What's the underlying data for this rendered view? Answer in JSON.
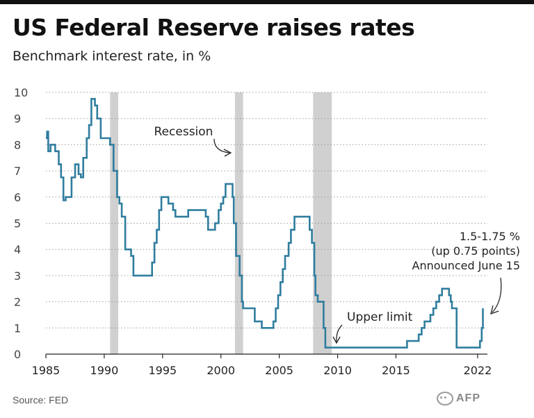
{
  "header": {
    "title": "US Federal Reserve raises rates",
    "subtitle": "Benchmark interest rate, in %"
  },
  "footer": {
    "source": "Source: FED",
    "watermark_text": "AFP"
  },
  "colors": {
    "line": "#2f7d9e",
    "recession": "#d0d0d0",
    "grid": "#9a9a9a",
    "axis": "#222222"
  },
  "chart_data": {
    "type": "line",
    "x_unit": "year",
    "xlim": [
      1985,
      2022.6
    ],
    "ylim": [
      0,
      10
    ],
    "x_ticks": [
      1985,
      1990,
      1995,
      2000,
      2005,
      2010,
      2015,
      2022
    ],
    "y_ticks": [
      0,
      1,
      2,
      3,
      4,
      5,
      6,
      7,
      8,
      9,
      10
    ],
    "grid": "horizontal dotted",
    "recessions": [
      {
        "start": 1990.5,
        "end": 1991.2
      },
      {
        "start": 2001.2,
        "end": 2001.9
      },
      {
        "start": 2007.9,
        "end": 2009.5
      }
    ],
    "annotations": {
      "recession_label": "Recession",
      "upper_limit_label": "Upper limit",
      "latest_line1": "1.5-1.75 %",
      "latest_line2": "(up 0.75 points)",
      "latest_line3": "Announced June 15"
    },
    "series": [
      {
        "step": "post",
        "points": [
          [
            1985.0,
            8.25
          ],
          [
            1985.1,
            8.5
          ],
          [
            1985.2,
            7.75
          ],
          [
            1985.4,
            8.0
          ],
          [
            1985.8,
            7.75
          ],
          [
            1986.1,
            7.25
          ],
          [
            1986.3,
            6.75
          ],
          [
            1986.5,
            5.875
          ],
          [
            1986.7,
            6.0
          ],
          [
            1987.2,
            6.75
          ],
          [
            1987.5,
            7.25
          ],
          [
            1987.8,
            6.875
          ],
          [
            1988.0,
            6.75
          ],
          [
            1988.2,
            7.5
          ],
          [
            1988.5,
            8.25
          ],
          [
            1988.7,
            8.75
          ],
          [
            1988.9,
            9.75
          ],
          [
            1989.2,
            9.5
          ],
          [
            1989.4,
            9.0
          ],
          [
            1989.7,
            8.25
          ],
          [
            1990.5,
            8.0
          ],
          [
            1990.8,
            7.0
          ],
          [
            1991.1,
            6.0
          ],
          [
            1991.3,
            5.75
          ],
          [
            1991.5,
            5.25
          ],
          [
            1991.8,
            4.0
          ],
          [
            1992.3,
            3.75
          ],
          [
            1992.5,
            3.0
          ],
          [
            1994.1,
            3.5
          ],
          [
            1994.3,
            4.25
          ],
          [
            1994.5,
            4.75
          ],
          [
            1994.7,
            5.5
          ],
          [
            1994.9,
            6.0
          ],
          [
            1995.5,
            5.75
          ],
          [
            1995.9,
            5.5
          ],
          [
            1996.1,
            5.25
          ],
          [
            1997.2,
            5.5
          ],
          [
            1998.7,
            5.25
          ],
          [
            1998.9,
            4.75
          ],
          [
            1999.5,
            5.0
          ],
          [
            1999.8,
            5.5
          ],
          [
            2000.0,
            5.75
          ],
          [
            2000.2,
            6.0
          ],
          [
            2000.4,
            6.5
          ],
          [
            2001.0,
            6.0
          ],
          [
            2001.1,
            5.0
          ],
          [
            2001.3,
            3.75
          ],
          [
            2001.6,
            3.0
          ],
          [
            2001.8,
            2.0
          ],
          [
            2001.9,
            1.75
          ],
          [
            2002.9,
            1.25
          ],
          [
            2003.5,
            1.0
          ],
          [
            2004.5,
            1.25
          ],
          [
            2004.7,
            1.75
          ],
          [
            2004.9,
            2.25
          ],
          [
            2005.1,
            2.75
          ],
          [
            2005.3,
            3.25
          ],
          [
            2005.5,
            3.75
          ],
          [
            2005.8,
            4.25
          ],
          [
            2006.0,
            4.75
          ],
          [
            2006.3,
            5.25
          ],
          [
            2007.6,
            4.75
          ],
          [
            2007.8,
            4.25
          ],
          [
            2008.0,
            3.0
          ],
          [
            2008.1,
            2.25
          ],
          [
            2008.3,
            2.0
          ],
          [
            2008.8,
            1.0
          ],
          [
            2008.95,
            0.25
          ],
          [
            2015.95,
            0.5
          ],
          [
            2016.95,
            0.75
          ],
          [
            2017.2,
            1.0
          ],
          [
            2017.45,
            1.25
          ],
          [
            2017.95,
            1.5
          ],
          [
            2018.2,
            1.75
          ],
          [
            2018.45,
            2.0
          ],
          [
            2018.7,
            2.25
          ],
          [
            2018.95,
            2.5
          ],
          [
            2019.55,
            2.25
          ],
          [
            2019.7,
            2.0
          ],
          [
            2019.8,
            1.75
          ],
          [
            2020.2,
            0.25
          ],
          [
            2022.2,
            0.5
          ],
          [
            2022.35,
            1.0
          ],
          [
            2022.45,
            1.75
          ]
        ]
      }
    ]
  }
}
